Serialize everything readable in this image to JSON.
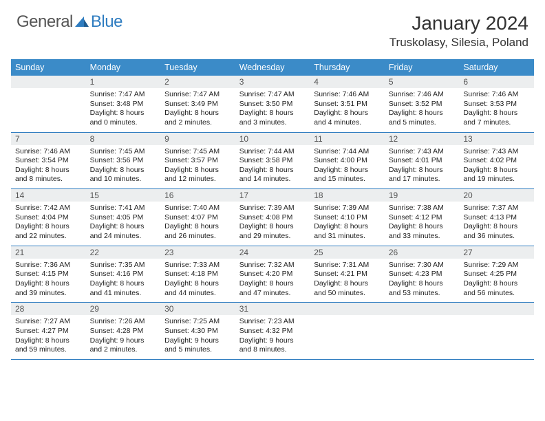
{
  "brand": {
    "word1": "General",
    "word2": "Blue"
  },
  "title": "January 2024",
  "location": "Truskolasy, Silesia, Poland",
  "colors": {
    "header_bg": "#3b8bc8",
    "header_text": "#ffffff",
    "daynum_bg": "#eceeef",
    "rule": "#2e7cc0",
    "brand_blue": "#2e7cc0",
    "brand_gray": "#555555",
    "body_text": "#222222",
    "page_bg": "#ffffff"
  },
  "typography": {
    "title_fontsize": 28,
    "location_fontsize": 17,
    "dayhead_fontsize": 12.5,
    "daynum_fontsize": 12,
    "body_fontsize": 10.5
  },
  "day_headers": [
    "Sunday",
    "Monday",
    "Tuesday",
    "Wednesday",
    "Thursday",
    "Friday",
    "Saturday"
  ],
  "weeks": [
    [
      null,
      {
        "n": "1",
        "sunrise": "Sunrise: 7:47 AM",
        "sunset": "Sunset: 3:48 PM",
        "day1": "Daylight: 8 hours",
        "day2": "and 0 minutes."
      },
      {
        "n": "2",
        "sunrise": "Sunrise: 7:47 AM",
        "sunset": "Sunset: 3:49 PM",
        "day1": "Daylight: 8 hours",
        "day2": "and 2 minutes."
      },
      {
        "n": "3",
        "sunrise": "Sunrise: 7:47 AM",
        "sunset": "Sunset: 3:50 PM",
        "day1": "Daylight: 8 hours",
        "day2": "and 3 minutes."
      },
      {
        "n": "4",
        "sunrise": "Sunrise: 7:46 AM",
        "sunset": "Sunset: 3:51 PM",
        "day1": "Daylight: 8 hours",
        "day2": "and 4 minutes."
      },
      {
        "n": "5",
        "sunrise": "Sunrise: 7:46 AM",
        "sunset": "Sunset: 3:52 PM",
        "day1": "Daylight: 8 hours",
        "day2": "and 5 minutes."
      },
      {
        "n": "6",
        "sunrise": "Sunrise: 7:46 AM",
        "sunset": "Sunset: 3:53 PM",
        "day1": "Daylight: 8 hours",
        "day2": "and 7 minutes."
      }
    ],
    [
      {
        "n": "7",
        "sunrise": "Sunrise: 7:46 AM",
        "sunset": "Sunset: 3:54 PM",
        "day1": "Daylight: 8 hours",
        "day2": "and 8 minutes."
      },
      {
        "n": "8",
        "sunrise": "Sunrise: 7:45 AM",
        "sunset": "Sunset: 3:56 PM",
        "day1": "Daylight: 8 hours",
        "day2": "and 10 minutes."
      },
      {
        "n": "9",
        "sunrise": "Sunrise: 7:45 AM",
        "sunset": "Sunset: 3:57 PM",
        "day1": "Daylight: 8 hours",
        "day2": "and 12 minutes."
      },
      {
        "n": "10",
        "sunrise": "Sunrise: 7:44 AM",
        "sunset": "Sunset: 3:58 PM",
        "day1": "Daylight: 8 hours",
        "day2": "and 14 minutes."
      },
      {
        "n": "11",
        "sunrise": "Sunrise: 7:44 AM",
        "sunset": "Sunset: 4:00 PM",
        "day1": "Daylight: 8 hours",
        "day2": "and 15 minutes."
      },
      {
        "n": "12",
        "sunrise": "Sunrise: 7:43 AM",
        "sunset": "Sunset: 4:01 PM",
        "day1": "Daylight: 8 hours",
        "day2": "and 17 minutes."
      },
      {
        "n": "13",
        "sunrise": "Sunrise: 7:43 AM",
        "sunset": "Sunset: 4:02 PM",
        "day1": "Daylight: 8 hours",
        "day2": "and 19 minutes."
      }
    ],
    [
      {
        "n": "14",
        "sunrise": "Sunrise: 7:42 AM",
        "sunset": "Sunset: 4:04 PM",
        "day1": "Daylight: 8 hours",
        "day2": "and 22 minutes."
      },
      {
        "n": "15",
        "sunrise": "Sunrise: 7:41 AM",
        "sunset": "Sunset: 4:05 PM",
        "day1": "Daylight: 8 hours",
        "day2": "and 24 minutes."
      },
      {
        "n": "16",
        "sunrise": "Sunrise: 7:40 AM",
        "sunset": "Sunset: 4:07 PM",
        "day1": "Daylight: 8 hours",
        "day2": "and 26 minutes."
      },
      {
        "n": "17",
        "sunrise": "Sunrise: 7:39 AM",
        "sunset": "Sunset: 4:08 PM",
        "day1": "Daylight: 8 hours",
        "day2": "and 29 minutes."
      },
      {
        "n": "18",
        "sunrise": "Sunrise: 7:39 AM",
        "sunset": "Sunset: 4:10 PM",
        "day1": "Daylight: 8 hours",
        "day2": "and 31 minutes."
      },
      {
        "n": "19",
        "sunrise": "Sunrise: 7:38 AM",
        "sunset": "Sunset: 4:12 PM",
        "day1": "Daylight: 8 hours",
        "day2": "and 33 minutes."
      },
      {
        "n": "20",
        "sunrise": "Sunrise: 7:37 AM",
        "sunset": "Sunset: 4:13 PM",
        "day1": "Daylight: 8 hours",
        "day2": "and 36 minutes."
      }
    ],
    [
      {
        "n": "21",
        "sunrise": "Sunrise: 7:36 AM",
        "sunset": "Sunset: 4:15 PM",
        "day1": "Daylight: 8 hours",
        "day2": "and 39 minutes."
      },
      {
        "n": "22",
        "sunrise": "Sunrise: 7:35 AM",
        "sunset": "Sunset: 4:16 PM",
        "day1": "Daylight: 8 hours",
        "day2": "and 41 minutes."
      },
      {
        "n": "23",
        "sunrise": "Sunrise: 7:33 AM",
        "sunset": "Sunset: 4:18 PM",
        "day1": "Daylight: 8 hours",
        "day2": "and 44 minutes."
      },
      {
        "n": "24",
        "sunrise": "Sunrise: 7:32 AM",
        "sunset": "Sunset: 4:20 PM",
        "day1": "Daylight: 8 hours",
        "day2": "and 47 minutes."
      },
      {
        "n": "25",
        "sunrise": "Sunrise: 7:31 AM",
        "sunset": "Sunset: 4:21 PM",
        "day1": "Daylight: 8 hours",
        "day2": "and 50 minutes."
      },
      {
        "n": "26",
        "sunrise": "Sunrise: 7:30 AM",
        "sunset": "Sunset: 4:23 PM",
        "day1": "Daylight: 8 hours",
        "day2": "and 53 minutes."
      },
      {
        "n": "27",
        "sunrise": "Sunrise: 7:29 AM",
        "sunset": "Sunset: 4:25 PM",
        "day1": "Daylight: 8 hours",
        "day2": "and 56 minutes."
      }
    ],
    [
      {
        "n": "28",
        "sunrise": "Sunrise: 7:27 AM",
        "sunset": "Sunset: 4:27 PM",
        "day1": "Daylight: 8 hours",
        "day2": "and 59 minutes."
      },
      {
        "n": "29",
        "sunrise": "Sunrise: 7:26 AM",
        "sunset": "Sunset: 4:28 PM",
        "day1": "Daylight: 9 hours",
        "day2": "and 2 minutes."
      },
      {
        "n": "30",
        "sunrise": "Sunrise: 7:25 AM",
        "sunset": "Sunset: 4:30 PM",
        "day1": "Daylight: 9 hours",
        "day2": "and 5 minutes."
      },
      {
        "n": "31",
        "sunrise": "Sunrise: 7:23 AM",
        "sunset": "Sunset: 4:32 PM",
        "day1": "Daylight: 9 hours",
        "day2": "and 8 minutes."
      },
      null,
      null,
      null
    ]
  ]
}
